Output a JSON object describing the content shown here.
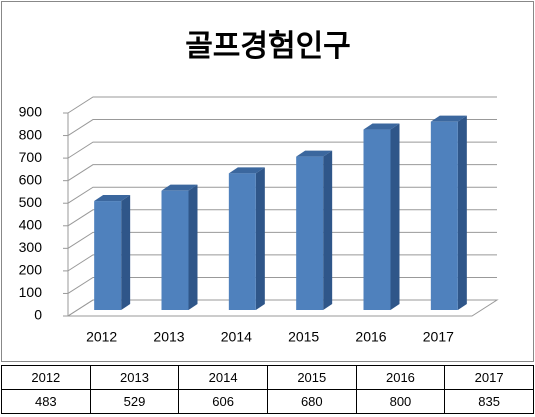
{
  "chart_data": {
    "type": "bar3d",
    "title": "골프경험인구",
    "categories": [
      "2012",
      "2013",
      "2014",
      "2015",
      "2016",
      "2017"
    ],
    "values": [
      483,
      529,
      606,
      680,
      800,
      835
    ],
    "color": "#4f81bd",
    "ylim": [
      0,
      900
    ],
    "yticks": [
      0,
      100,
      200,
      300,
      400,
      500,
      600,
      700,
      800,
      900
    ],
    "grid": true
  }
}
